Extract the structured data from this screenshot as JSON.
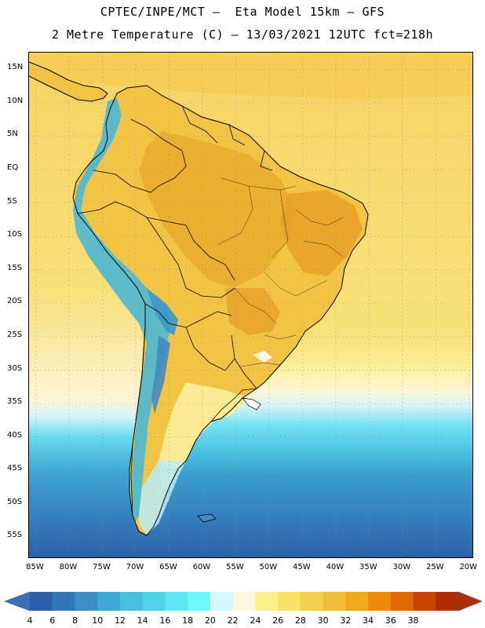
{
  "header": {
    "line1": "CPTEC/INPE/MCT –  Eta Model 15km – GFS",
    "line2": "2 Metre Temperature (C) – 13/03/2021 12UTC fct=218h"
  },
  "map": {
    "lat_labels": [
      "15N",
      "10N",
      "5N",
      "EQ",
      "5S",
      "10S",
      "15S",
      "20S",
      "25S",
      "30S",
      "35S",
      "40S",
      "45S",
      "50S",
      "55S"
    ],
    "lon_labels": [
      "85W",
      "80W",
      "75W",
      "70W",
      "65W",
      "60W",
      "55W",
      "50W",
      "45W",
      "40W",
      "35W",
      "30W",
      "25W",
      "20W"
    ],
    "lat_range": [
      -58,
      17.5
    ],
    "lon_range": [
      -86,
      -19.5
    ],
    "colors": {
      "ocean_north": "#f4d460",
      "land_warm": "#f0bf3c",
      "land_hot": "#eaa72a",
      "andes_cold": "#48b0cc",
      "south_ocean": "#3a8ec4",
      "deep_south": "#2c6aa8"
    }
  },
  "colorbar": {
    "labels": [
      "4",
      "6",
      "8",
      "10",
      "12",
      "14",
      "16",
      "18",
      "20",
      "22",
      "24",
      "26",
      "28",
      "30",
      "32",
      "34",
      "36",
      "38"
    ],
    "colors": [
      "#2b5fa8",
      "#3178b8",
      "#3a90c6",
      "#42a8d4",
      "#4cbfe0",
      "#52d2e8",
      "#5ee6f2",
      "#6efafc",
      "#d4f6fc",
      "#fcf8e0",
      "#faf08c",
      "#f8e268",
      "#f4d052",
      "#f0bc3c",
      "#f0a81c",
      "#ec8a10",
      "#e06a08",
      "#c84404",
      "#b02c02"
    ],
    "left_arrow_color": "#3a6eb6",
    "right_arrow_color": "#b02c02"
  }
}
